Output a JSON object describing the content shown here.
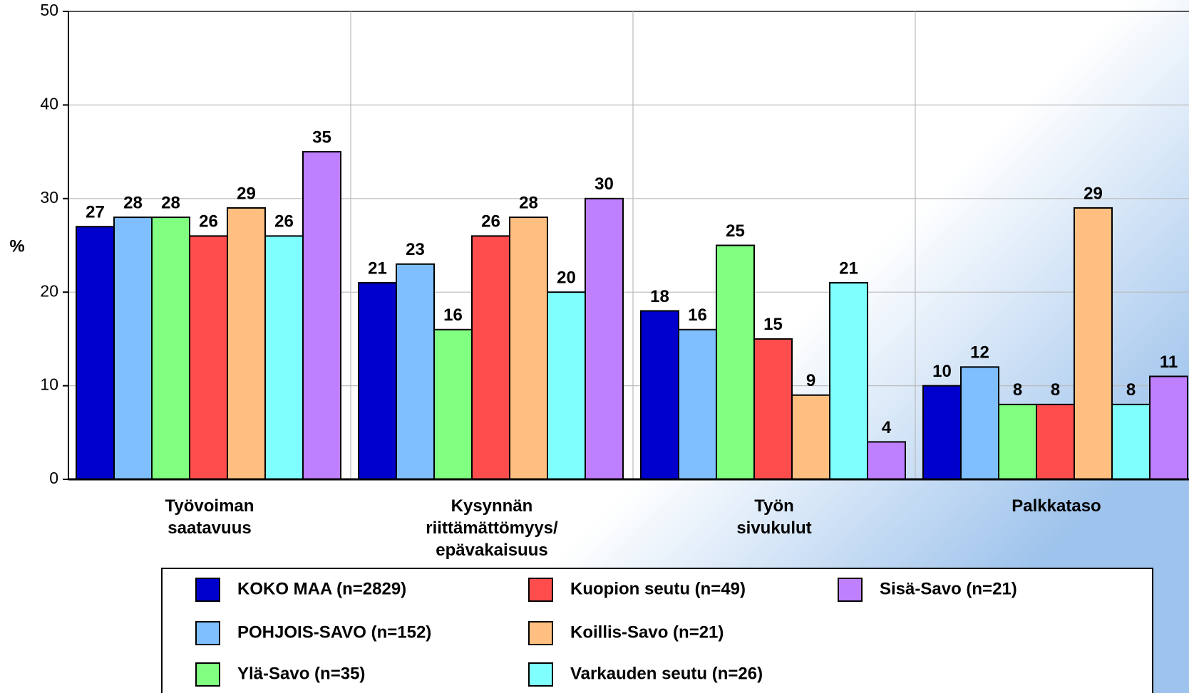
{
  "chart_data": {
    "type": "bar",
    "y_label": "%",
    "categories": [
      [
        "Työvoiman",
        "saatavuus"
      ],
      [
        "Kysynnän",
        "riittämättömyys/",
        "epävakaisuus"
      ],
      [
        "Työn",
        "sivukulut"
      ],
      [
        "Palkkataso"
      ]
    ],
    "series": [
      {
        "name": "KOKO MAA (n=2829)",
        "color": "#0000cc",
        "values": [
          27,
          21,
          18,
          10
        ]
      },
      {
        "name": "POHJOIS-SAVO (n=152)",
        "color": "#80bfff",
        "values": [
          28,
          23,
          16,
          12
        ]
      },
      {
        "name": "Ylä-Savo (n=35)",
        "color": "#80ff80",
        "values": [
          28,
          16,
          25,
          8
        ]
      },
      {
        "name": "Kuopion seutu (n=49)",
        "color": "#ff4d4d",
        "values": [
          26,
          26,
          15,
          8
        ]
      },
      {
        "name": "Koillis-Savo (n=21)",
        "color": "#ffbf80",
        "values": [
          29,
          28,
          9,
          29
        ]
      },
      {
        "name": "Varkauden seutu (n=26)",
        "color": "#80ffff",
        "values": [
          26,
          20,
          21,
          8
        ]
      },
      {
        "name": "Sisä-Savo (n=21)",
        "color": "#bf80ff",
        "values": [
          35,
          30,
          4,
          11
        ]
      }
    ],
    "ylim": [
      0,
      50
    ],
    "yticks": [
      0,
      10,
      20,
      30,
      40,
      50
    ],
    "grid": true
  }
}
